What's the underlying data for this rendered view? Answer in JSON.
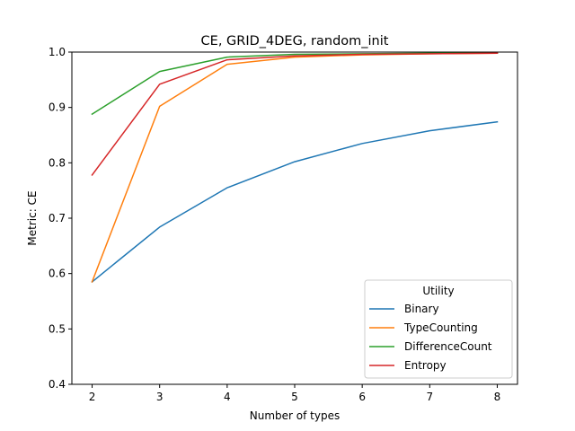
{
  "chart_data": {
    "type": "line",
    "title": "CE, GRID_4DEG, random_init",
    "xlabel": "Number of types",
    "ylabel": "Metric: CE",
    "x": [
      2,
      3,
      4,
      5,
      6,
      7,
      8
    ],
    "xlim": [
      1.7,
      8.3
    ],
    "ylim": [
      0.4,
      1.0
    ],
    "xticks": [
      "2",
      "3",
      "4",
      "5",
      "6",
      "7",
      "8"
    ],
    "yticks": [
      "0.4",
      "0.5",
      "0.6",
      "0.7",
      "0.8",
      "0.9",
      "1.0"
    ],
    "grid": false,
    "legend": {
      "title": "Utility",
      "placement": "lower-right"
    },
    "series": [
      {
        "name": "Binary",
        "color": "#1f77b4",
        "values": [
          0.585,
          0.684,
          0.755,
          0.802,
          0.835,
          0.858,
          0.874
        ]
      },
      {
        "name": "TypeCounting",
        "color": "#ff7f0e",
        "values": [
          0.585,
          0.902,
          0.978,
          0.991,
          0.995,
          0.997,
          0.998
        ]
      },
      {
        "name": "DifferenceCount",
        "color": "#2ca02c",
        "values": [
          0.888,
          0.965,
          0.991,
          0.996,
          0.997,
          0.998,
          0.998
        ]
      },
      {
        "name": "Entropy",
        "color": "#d62728",
        "values": [
          0.778,
          0.942,
          0.986,
          0.993,
          0.996,
          0.997,
          0.998
        ]
      }
    ]
  }
}
